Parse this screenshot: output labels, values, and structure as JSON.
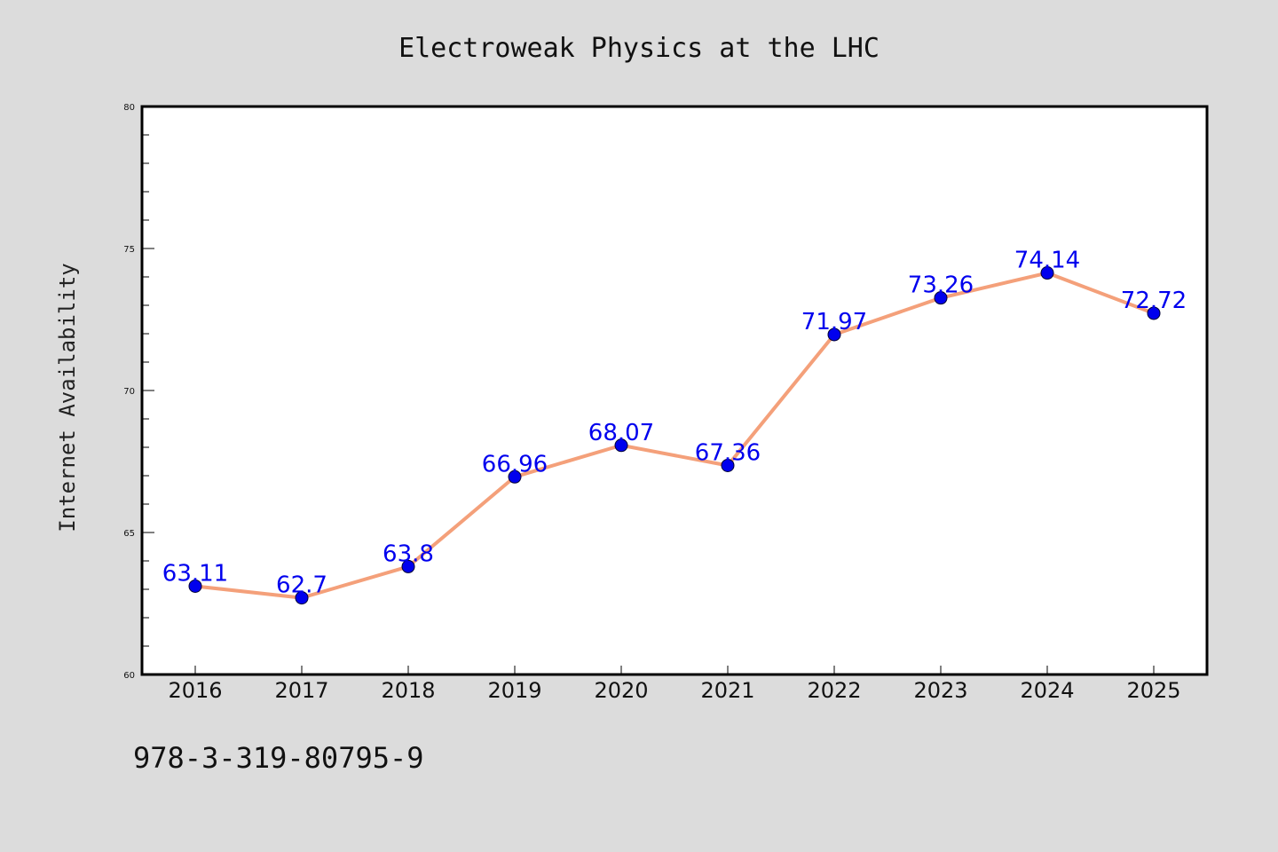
{
  "chart_data": {
    "type": "line",
    "title": "Electroweak Physics at the LHC",
    "ylabel": "Internet Availability",
    "xlabel": "",
    "x": [
      "2016",
      "2017",
      "2018",
      "2019",
      "2020",
      "2021",
      "2022",
      "2023",
      "2024",
      "2025"
    ],
    "series": [
      {
        "values": [
          63.11,
          62.7,
          63.8,
          66.96,
          68.07,
          67.36,
          71.97,
          73.26,
          74.14,
          72.72
        ]
      }
    ],
    "data_labels": [
      "63.11",
      "62.7",
      "63.8",
      "66.96",
      "68.07",
      "67.36",
      "71.97",
      "73.26",
      "74.14",
      "72.72"
    ],
    "ylim": [
      60,
      80
    ],
    "y_ticks": [
      "60",
      "65",
      "70",
      "75",
      "80"
    ],
    "grid": false,
    "colors": {
      "line": "#f4a07a",
      "marker": "#0000ee",
      "label": "#0000ee",
      "background": "#dcdcdc",
      "plot_background": "#ffffff"
    }
  },
  "footer": {
    "code": "978-3-319-80795-9"
  }
}
